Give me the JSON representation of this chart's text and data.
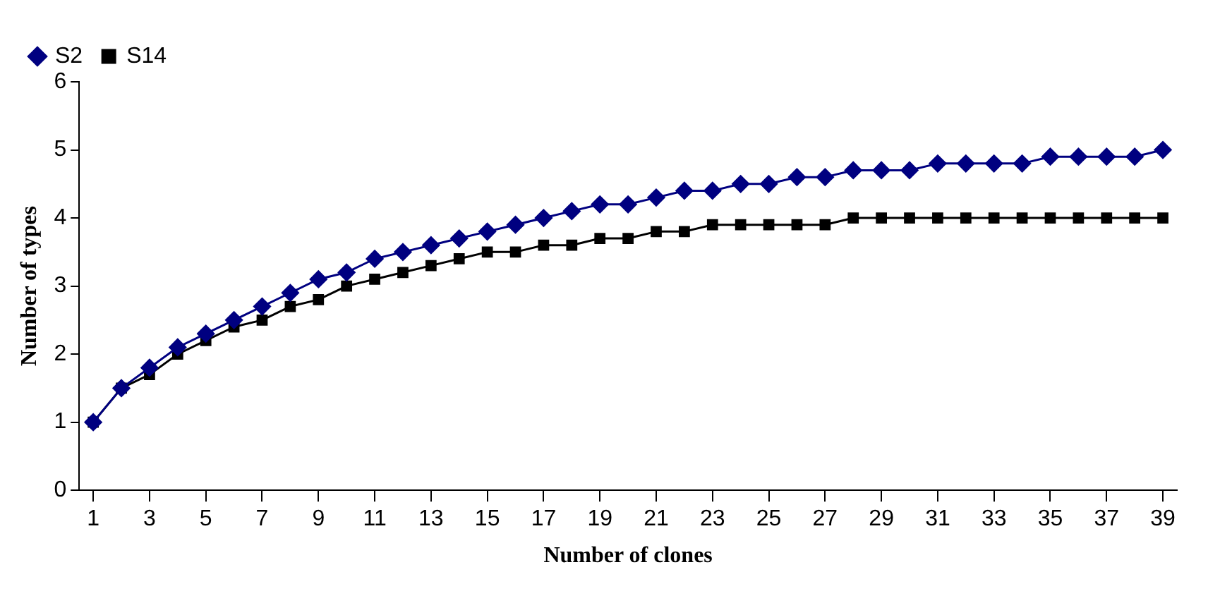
{
  "chart_data": {
    "type": "line",
    "xlabel": "Number of clones",
    "ylabel": "Number of types",
    "x": [
      1,
      2,
      3,
      4,
      5,
      6,
      7,
      8,
      9,
      10,
      11,
      12,
      13,
      14,
      15,
      16,
      17,
      18,
      19,
      20,
      21,
      22,
      23,
      24,
      25,
      26,
      27,
      28,
      29,
      30,
      31,
      32,
      33,
      34,
      35,
      36,
      37,
      38,
      39
    ],
    "xlim": [
      0.5,
      39.5
    ],
    "xticks": [
      1,
      3,
      5,
      7,
      9,
      11,
      13,
      15,
      17,
      19,
      21,
      23,
      25,
      27,
      29,
      31,
      33,
      35,
      37,
      39
    ],
    "series": [
      {
        "name": "S2",
        "color": "#000080",
        "marker": "diamond",
        "values": [
          1,
          1.5,
          1.8,
          2.1,
          2.3,
          2.5,
          2.7,
          2.9,
          3.1,
          3.2,
          3.4,
          3.5,
          3.6,
          3.7,
          3.8,
          3.9,
          4.0,
          4.1,
          4.2,
          4.2,
          4.3,
          4.4,
          4.4,
          4.5,
          4.5,
          4.6,
          4.6,
          4.7,
          4.7,
          4.7,
          4.8,
          4.8,
          4.8,
          4.8,
          4.9,
          4.9,
          4.9,
          4.9,
          5.0
        ]
      },
      {
        "name": "S14",
        "color": "#000000",
        "marker": "square",
        "values": [
          1,
          1.5,
          1.7,
          2.0,
          2.2,
          2.4,
          2.5,
          2.7,
          2.8,
          3.0,
          3.1,
          3.2,
          3.3,
          3.4,
          3.5,
          3.5,
          3.6,
          3.6,
          3.7,
          3.7,
          3.8,
          3.8,
          3.9,
          3.9,
          3.9,
          3.9,
          3.9,
          4,
          4,
          4,
          4,
          4,
          4,
          4,
          4,
          4,
          4,
          4,
          4
        ]
      }
    ],
    "ylim": [
      0,
      6
    ],
    "yticks": [
      0,
      1,
      2,
      3,
      4,
      5,
      6
    ],
    "grid": false,
    "legend": "top left"
  }
}
